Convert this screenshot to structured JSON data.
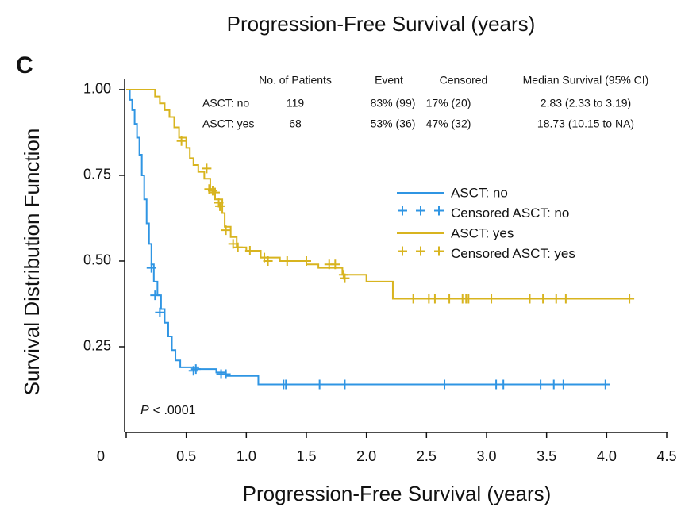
{
  "chart_data": {
    "type": "km",
    "title": "Progression-Free Survival (years)",
    "x_label": "Progression-Free Survival (years)",
    "y_label": "Survival Distribution Function",
    "panel_label": "C",
    "annotation": {
      "italic": "P",
      "text": "< .0001"
    },
    "xlim": [
      0,
      4.5
    ],
    "ylim": [
      0,
      1.03
    ],
    "xticks": [
      0,
      0.5,
      {
        "value": 1,
        "label": "1.0"
      },
      1.5,
      {
        "value": 2,
        "label": "2.0"
      },
      2.5,
      {
        "value": 3,
        "label": "3.0"
      },
      3.5,
      {
        "value": 4,
        "label": "4.0"
      },
      4.5
    ],
    "yticks": [
      {
        "value": 0.25,
        "label": "0.25"
      },
      {
        "value": 0.5,
        "label": "0.50"
      },
      {
        "value": 0.75,
        "label": "0.75"
      },
      {
        "value": 1,
        "label": "1.00"
      }
    ],
    "table": {
      "header": [
        "No. of Patients",
        "Event",
        "Censored",
        "Median Survival (95% CI)"
      ],
      "rows": [
        [
          "ASCT: no",
          "119",
          "83% (99)",
          "17% (20)",
          "2.83 (2.33 to 3.19)"
        ],
        [
          "ASCT: yes",
          "68",
          "53% (36)",
          "47% (32)",
          "18.73 (10.15 to NA)"
        ]
      ]
    },
    "series": [
      {
        "name": "ASCT: no",
        "kind": "step",
        "color": "#2f95e3",
        "x": [
          0,
          0.03,
          0.05,
          0.07,
          0.09,
          0.11,
          0.13,
          0.15,
          0.17,
          0.19,
          0.21,
          0.23,
          0.26,
          0.29,
          0.32,
          0.35,
          0.38,
          0.41,
          0.45,
          0.6,
          0.75,
          0.83,
          1.1,
          3.99
        ],
        "values": [
          1,
          0.97,
          0.94,
          0.9,
          0.86,
          0.81,
          0.75,
          0.68,
          0.61,
          0.55,
          0.49,
          0.44,
          0.4,
          0.36,
          0.32,
          0.28,
          0.24,
          0.21,
          0.19,
          0.185,
          0.175,
          0.165,
          0.14,
          0.14
        ]
      },
      {
        "name": "Censored ASCT: no",
        "kind": "censor",
        "color": "#2f95e3",
        "x": [
          0.21,
          0.24,
          0.28,
          0.56,
          0.58,
          0.79,
          0.83,
          1.31,
          1.33,
          1.61,
          1.82,
          2.65,
          3.08,
          3.14,
          3.45,
          3.56,
          3.64,
          3.99
        ],
        "values": [
          0.48,
          0.4,
          0.35,
          0.18,
          0.185,
          0.17,
          0.17,
          0.14,
          0.14,
          0.14,
          0.14,
          0.14,
          0.14,
          0.14,
          0.14,
          0.14,
          0.14,
          0.14
        ]
      },
      {
        "name": "ASCT: yes",
        "kind": "step",
        "color": "#d8b41f",
        "x": [
          0,
          0.24,
          0.28,
          0.32,
          0.36,
          0.4,
          0.44,
          0.5,
          0.53,
          0.56,
          0.6,
          0.65,
          0.7,
          0.74,
          0.8,
          0.82,
          0.87,
          0.92,
          1.0,
          1.12,
          1.28,
          1.5,
          1.6,
          1.8,
          2.0,
          2.22,
          4.19
        ],
        "values": [
          1,
          0.98,
          0.96,
          0.94,
          0.92,
          0.89,
          0.86,
          0.83,
          0.8,
          0.78,
          0.76,
          0.74,
          0.71,
          0.68,
          0.64,
          0.6,
          0.57,
          0.54,
          0.53,
          0.51,
          0.5,
          0.49,
          0.48,
          0.46,
          0.44,
          0.39,
          0.39
        ]
      },
      {
        "name": "Censored ASCT: yes",
        "kind": "censor",
        "color": "#d8b41f",
        "x": [
          0.46,
          0.67,
          0.69,
          0.72,
          0.74,
          0.77,
          0.78,
          0.83,
          0.89,
          0.93,
          1.03,
          1.15,
          1.18,
          1.34,
          1.5,
          1.69,
          1.74,
          1.81,
          1.82,
          2.39,
          2.52,
          2.57,
          2.69,
          2.8,
          2.83,
          2.85,
          3.04,
          3.36,
          3.47,
          3.58,
          3.66,
          4.19
        ],
        "values": [
          0.85,
          0.77,
          0.71,
          0.705,
          0.7,
          0.67,
          0.66,
          0.59,
          0.55,
          0.54,
          0.53,
          0.51,
          0.5,
          0.5,
          0.5,
          0.49,
          0.49,
          0.46,
          0.45,
          0.39,
          0.39,
          0.39,
          0.39,
          0.39,
          0.39,
          0.39,
          0.39,
          0.39,
          0.39,
          0.39,
          0.39,
          0.39
        ]
      }
    ]
  }
}
